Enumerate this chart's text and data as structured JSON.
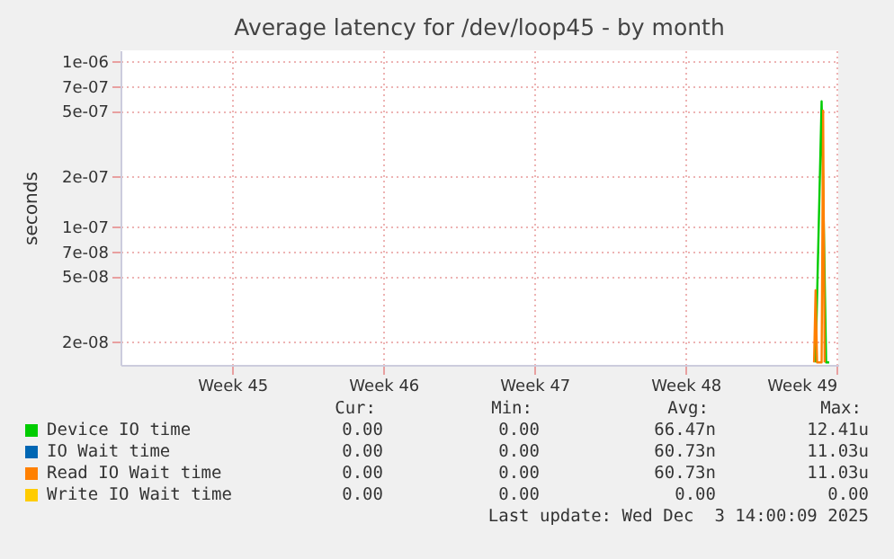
{
  "chart_data": {
    "type": "line",
    "title": "Average latency for /dev/loop45 - by month",
    "ylabel": "seconds",
    "log": true,
    "grid": true,
    "legend": "bottom",
    "xlim": [
      "2025-10-28T19:41",
      "2025-12-01T01:41"
    ],
    "xticks": [
      {
        "value": "2025-11-03",
        "label": "Week 45"
      },
      {
        "value": "2025-11-10",
        "label": "Week 46"
      },
      {
        "value": "2025-11-17",
        "label": "Week 47"
      },
      {
        "value": "2025-11-24",
        "label": "Week 48"
      },
      {
        "value": "2025-12-01",
        "label": "Week 49"
      }
    ],
    "ylim": [
      1.45e-08,
      1.16e-06
    ],
    "yticks": [
      {
        "value": 2e-08,
        "label": "2e-08"
      },
      {
        "value": 5e-08,
        "label": "5e-08"
      },
      {
        "value": 7e-08,
        "label": "7e-08"
      },
      {
        "value": 1e-07,
        "label": "1e-07"
      },
      {
        "value": 2e-07,
        "label": "2e-07"
      },
      {
        "value": 5e-07,
        "label": "5e-07"
      },
      {
        "value": 7e-07,
        "label": "7e-07"
      },
      {
        "value": 1e-06,
        "label": "1e-06"
      }
    ],
    "series": [
      {
        "name": "Device IO time",
        "color": "#00cc00",
        "x": [
          "2025-11-30T00:29",
          "2025-11-30T07:12",
          "2025-11-30T12:14",
          "2025-11-30T15:36"
        ],
        "values": [
          1.5e-08,
          5.7e-07,
          1.5e-08,
          1.5e-08
        ]
      },
      {
        "name": "IO Wait time",
        "color": "#0066b3"
      },
      {
        "name": "Read IO Wait time",
        "color": "#ff8000",
        "x": [
          "2025-11-29T22:48",
          "2025-11-30T00:29",
          "2025-11-30T02:10",
          "2025-11-30T07:12",
          "2025-11-30T08:53",
          "2025-11-30T10:34"
        ],
        "values": [
          1.5e-08,
          4.1e-08,
          1.5e-08,
          1.5e-08,
          5e-07,
          1.5e-08
        ]
      },
      {
        "name": "Write IO Wait time",
        "color": "#ffcc00"
      }
    ],
    "annotations": [
      "Cur:",
      "Min:",
      "Avg:",
      "Max:",
      "0.00",
      "0.00",
      "66.47n",
      "12.41u",
      "0.00",
      "0.00",
      "60.73n",
      "11.03u",
      "0.00",
      "0.00",
      "60.73n",
      "11.03u",
      "0.00",
      "0.00",
      "0.00",
      "0.00",
      "Last update: Wed Dec  3 14:00:09 2025"
    ]
  }
}
